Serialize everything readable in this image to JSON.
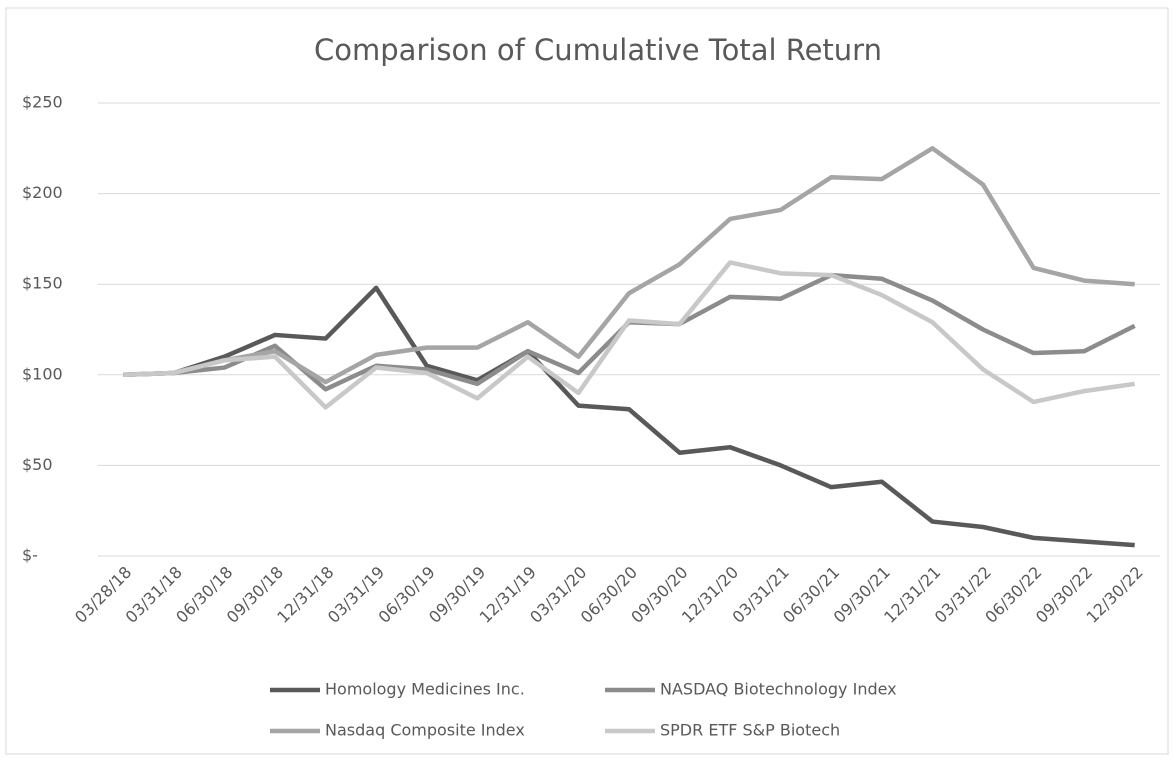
{
  "chart_data": {
    "type": "line",
    "title": "Comparison of Cumulative Total Return",
    "categories": [
      "03/28/18",
      "03/31/18",
      "06/30/18",
      "09/30/18",
      "12/31/18",
      "03/31/19",
      "06/30/19",
      "09/30/19",
      "12/31/19",
      "03/31/20",
      "06/30/20",
      "09/30/20",
      "12/31/20",
      "03/31/21",
      "06/30/21",
      "09/30/21",
      "12/31/21",
      "03/31/22",
      "06/30/22",
      "09/30/22",
      "12/30/22"
    ],
    "series": [
      {
        "name": "Homology Medicines Inc.",
        "color": "#595959",
        "values": [
          100,
          101,
          110,
          122,
          120,
          148,
          105,
          97,
          113,
          83,
          81,
          57,
          60,
          50,
          38,
          41,
          19,
          16,
          10,
          8,
          6
        ]
      },
      {
        "name": "NASDAQ Biotechnology Index",
        "color": "#8c8c8c",
        "values": [
          100,
          101,
          104,
          116,
          92,
          105,
          103,
          95,
          113,
          101,
          129,
          128,
          143,
          142,
          155,
          153,
          141,
          125,
          112,
          113,
          127
        ]
      },
      {
        "name": "Nasdaq Composite Index",
        "color": "#a5a5a5",
        "values": [
          100,
          101,
          108,
          113,
          96,
          111,
          115,
          115,
          129,
          110,
          145,
          161,
          186,
          191,
          209,
          208,
          225,
          205,
          159,
          152,
          150
        ]
      },
      {
        "name": "SPDR ETF S&P Biotech",
        "color": "#c8c8c8",
        "values": [
          100,
          101,
          108,
          110,
          82,
          104,
          101,
          87,
          110,
          90,
          130,
          128,
          162,
          156,
          155,
          144,
          129,
          103,
          85,
          91,
          95
        ]
      }
    ],
    "ylim": [
      0,
      250
    ],
    "yticks": [
      {
        "value": 0,
        "label": "$-"
      },
      {
        "value": 50,
        "label": "$50"
      },
      {
        "value": 100,
        "label": "$100"
      },
      {
        "value": 150,
        "label": "$150"
      },
      {
        "value": 200,
        "label": "$200"
      },
      {
        "value": 250,
        "label": "$250"
      }
    ],
    "grid": true
  }
}
